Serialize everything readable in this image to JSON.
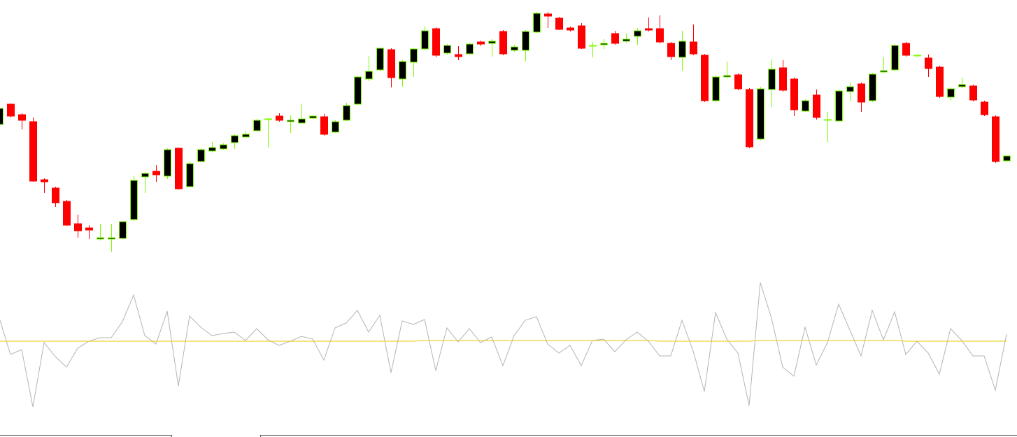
{
  "chart_data": [
    {
      "type": "candlestick",
      "ylim": [
        0,
        370
      ],
      "up_color": "#000000",
      "up_outline": "#7cfc00",
      "down_color": "#ff0000",
      "open": [
        192,
        221,
        206,
        196,
        113,
        101,
        82,
        50,
        44,
        28,
        28,
        29,
        56,
        117,
        125,
        118,
        158,
        103,
        139,
        154,
        157,
        166,
        174,
        183,
        199,
        204,
        196,
        194,
        201,
        203,
        181,
        198,
        221,
        257,
        270,
        299,
        257,
        281,
        300,
        329,
        294,
        292,
        293,
        310,
        308,
        325,
        298,
        298,
        324,
        350,
        344,
        330,
        333,
        304,
        306,
        322,
        311,
        318,
        329,
        329,
        308,
        288,
        310,
        291,
        226,
        260,
        263,
        242,
        171,
        242,
        273,
        257,
        211,
        234,
        198,
        197,
        239,
        250,
        226,
        267,
        270,
        308,
        290,
        287,
        274,
        231,
        246,
        247,
        224,
        203,
        140
      ],
      "high": [
        220,
        222,
        208,
        202,
        115,
        103,
        84,
        63,
        48,
        50,
        50,
        54,
        118,
        124,
        134,
        158,
        159,
        140,
        158,
        167,
        165,
        178,
        182,
        200,
        201,
        208,
        205,
        222,
        206,
        207,
        198,
        223,
        262,
        290,
        302,
        301,
        284,
        302,
        332,
        331,
        307,
        304,
        309,
        312,
        314,
        327,
        306,
        327,
        353,
        353,
        346,
        332,
        337,
        310,
        314,
        326,
        322,
        330,
        345,
        348,
        310,
        326,
        335,
        293,
        262,
        282,
        265,
        244,
        246,
        285,
        284,
        259,
        228,
        242,
        210,
        242,
        252,
        252,
        266,
        288,
        307,
        310,
        292,
        292,
        276,
        245,
        259,
        249,
        226,
        205,
        149
      ],
      "low": [
        190,
        202,
        185,
        110,
        94,
        74,
        47,
        30,
        28,
        26,
        10,
        28,
        54,
        94,
        110,
        114,
        99,
        102,
        138,
        152,
        156,
        157,
        173,
        182,
        159,
        196,
        180,
        193,
        200,
        176,
        180,
        197,
        220,
        254,
        268,
        245,
        246,
        260,
        298,
        288,
        292,
        284,
        292,
        304,
        289,
        291,
        296,
        282,
        323,
        330,
        327,
        325,
        300,
        288,
        300,
        306,
        309,
        306,
        325,
        308,
        284,
        269,
        291,
        224,
        224,
        258,
        241,
        158,
        169,
        217,
        239,
        204,
        210,
        199,
        167,
        196,
        225,
        210,
        224,
        265,
        268,
        289,
        289,
        260,
        230,
        226,
        244,
        225,
        204,
        137,
        138
      ],
      "close": [
        215,
        204,
        198,
        111,
        110,
        80,
        48,
        40,
        41,
        30,
        30,
        53,
        112,
        122,
        120,
        156,
        100,
        136,
        156,
        159,
        163,
        176,
        178,
        198,
        200,
        198,
        198,
        200,
        204,
        178,
        196,
        219,
        260,
        268,
        301,
        259,
        282,
        300,
        326,
        291,
        305,
        289,
        307,
        307,
        311,
        293,
        303,
        325,
        351,
        347,
        328,
        327,
        301,
        305,
        308,
        308,
        314,
        326,
        327,
        310,
        289,
        311,
        293,
        226,
        260,
        262,
        243,
        160,
        243,
        271,
        241,
        213,
        226,
        202,
        199,
        240,
        246,
        224,
        264,
        269,
        305,
        291,
        291,
        272,
        232,
        243,
        249,
        227,
        206,
        139,
        147
      ]
    },
    {
      "type": "line",
      "ylim": [
        -112,
        93
      ],
      "series": [
        {
          "color": "#b4b4b4",
          "values": [
            30,
            -19,
            -12,
            -94,
            -2,
            -22,
            -37,
            -10,
            0,
            5,
            5,
            28,
            66,
            8,
            -4,
            43,
            -64,
            36,
            20,
            8,
            11,
            13,
            1,
            18,
            2,
            -6,
            0,
            7,
            3,
            -27,
            19,
            26,
            44,
            13,
            37,
            -45,
            29,
            24,
            31,
            -42,
            19,
            -1,
            18,
            -2,
            6,
            -35,
            8,
            30,
            35,
            -4,
            -17,
            -6,
            -35,
            1,
            3,
            -15,
            2,
            13,
            0,
            -21,
            -21,
            30,
            -14,
            -72,
            41,
            3,
            -17,
            -92,
            84,
            33,
            -37,
            -50,
            20,
            -34,
            -2,
            53,
            16,
            -21,
            44,
            2,
            42,
            -19,
            0,
            -17,
            -47,
            18,
            1,
            -21,
            -21,
            -70,
            10
          ]
        },
        {
          "color": "#e8c800",
          "values": [
            0,
            0,
            0,
            0,
            0,
            0,
            0,
            0,
            0,
            0,
            0,
            0,
            0,
            0,
            0,
            0,
            0,
            0,
            0,
            0,
            0,
            0,
            0,
            0,
            0,
            0,
            0,
            0,
            0,
            0,
            0,
            0,
            0,
            0,
            0,
            0,
            0,
            0,
            1,
            1,
            1,
            1,
            1,
            1,
            1,
            1,
            1,
            1,
            1,
            1,
            1,
            1,
            1,
            1,
            1,
            1,
            1,
            1,
            1,
            0,
            0,
            0,
            0,
            0,
            0,
            0,
            0,
            0,
            1,
            1,
            1,
            1,
            1,
            1,
            1,
            1,
            1,
            1,
            1,
            1,
            1,
            0,
            0,
            0,
            0,
            0,
            0,
            0,
            0,
            0,
            0
          ]
        }
      ]
    }
  ]
}
